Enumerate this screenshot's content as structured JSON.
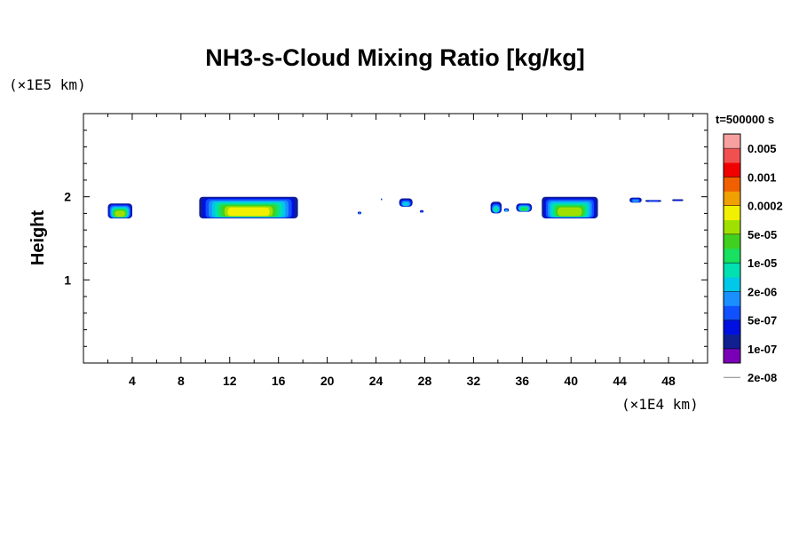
{
  "chart_data": {
    "type": "heatmap",
    "title": "NH3-s-Cloud Mixing Ratio [kg/kg]",
    "ylabel": "Height",
    "y_unit": "(×1E5 km)",
    "x_unit": "(×1E4 km)",
    "time_label": "t=500000 s",
    "xlim": [
      0,
      51.2
    ],
    "ylim": [
      0,
      3.0
    ],
    "x_ticks": [
      "4",
      "8",
      "12",
      "16",
      "20",
      "24",
      "28",
      "32",
      "36",
      "40",
      "44",
      "48"
    ],
    "y_ticks": [
      "1",
      "2"
    ],
    "colorbar": {
      "labels": [
        "0.005",
        "0.001",
        "0.0002",
        "5e-05",
        "1e-05",
        "2e-06",
        "5e-07",
        "1e-07",
        "2e-08"
      ],
      "colors": [
        "#7a00b8",
        "#102090",
        "#0010e0",
        "#1050ff",
        "#1a90ff",
        "#00c8e8",
        "#00e0b0",
        "#18e060",
        "#40d020",
        "#a0e000",
        "#f0f000",
        "#f0a000",
        "#f06000",
        "#f00000",
        "#f05050",
        "#f8a0a0"
      ]
    },
    "clouds": [
      {
        "x": [
          2.0,
          4.0
        ],
        "y_top": 1.92,
        "y_bottom": 1.74,
        "core_level": 9
      },
      {
        "x": [
          9.5,
          17.6
        ],
        "y_top": 2.0,
        "y_bottom": 1.74,
        "core_level": 10
      },
      {
        "x": [
          22.5,
          22.8
        ],
        "y_top": 1.82,
        "y_bottom": 1.79,
        "core_level": 4
      },
      {
        "x": [
          24.4,
          24.5
        ],
        "y_top": 1.98,
        "y_bottom": 1.96,
        "core_level": 3
      },
      {
        "x": [
          25.9,
          27.0
        ],
        "y_top": 1.98,
        "y_bottom": 1.88,
        "core_level": 5
      },
      {
        "x": [
          27.6,
          27.9
        ],
        "y_top": 1.84,
        "y_bottom": 1.81,
        "core_level": 3
      },
      {
        "x": [
          33.4,
          34.3
        ],
        "y_top": 1.94,
        "y_bottom": 1.8,
        "core_level": 6
      },
      {
        "x": [
          34.5,
          34.9
        ],
        "y_top": 1.86,
        "y_bottom": 1.82,
        "core_level": 5
      },
      {
        "x": [
          35.5,
          36.8
        ],
        "y_top": 1.92,
        "y_bottom": 1.82,
        "core_level": 7
      },
      {
        "x": [
          37.6,
          42.2
        ],
        "y_top": 2.0,
        "y_bottom": 1.74,
        "core_level": 9
      },
      {
        "x": [
          44.8,
          45.8
        ],
        "y_top": 1.99,
        "y_bottom": 1.93,
        "core_level": 4
      },
      {
        "x": [
          46.1,
          47.4
        ],
        "y_top": 1.96,
        "y_bottom": 1.95,
        "core_level": 3
      },
      {
        "x": [
          48.3,
          49.2
        ],
        "y_top": 1.97,
        "y_bottom": 1.95,
        "core_level": 2
      }
    ]
  }
}
